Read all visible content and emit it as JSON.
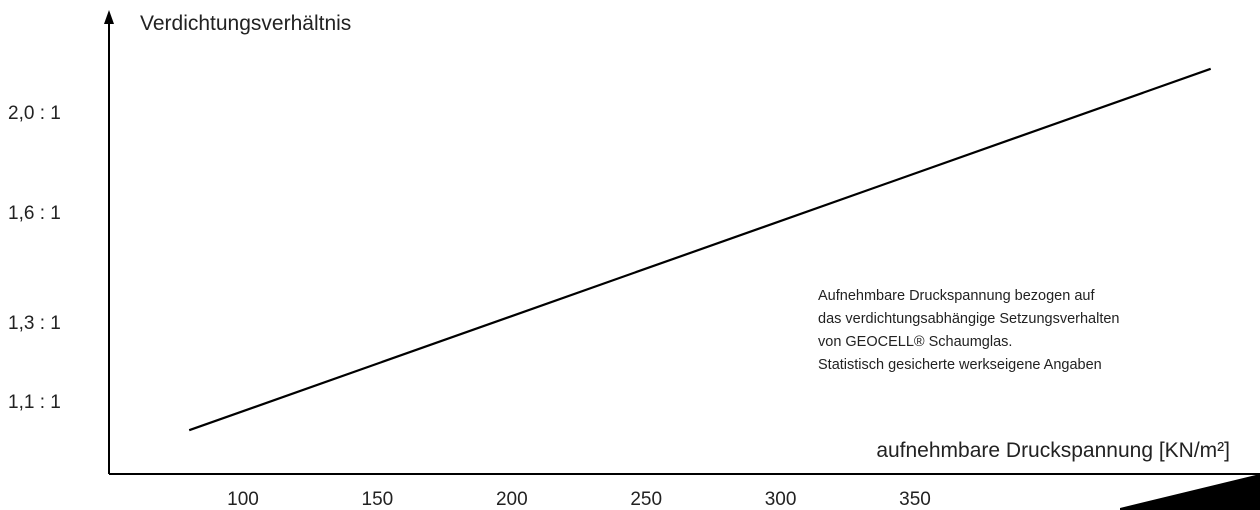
{
  "colors": {
    "line": "#000000",
    "axis": "#000000",
    "text": "#222222",
    "background": "#ffffff"
  },
  "annotation": {
    "lines": [
      "Aufnehmbare Druckspannung bezogen auf",
      "das verdichtungsabhängige Setzungsverhalten",
      "von GEOCELL® Schaumglas.",
      "Statistisch gesicherte werkseigene Angaben"
    ]
  },
  "chart_data": {
    "type": "line",
    "title": "",
    "xlabel": "aufnehmbare Druckspannung [KN/m²]",
    "ylabel": "Verdichtungsverhältnis",
    "x_ticks": [
      {
        "value": 100,
        "label": "100"
      },
      {
        "value": 150,
        "label": "150"
      },
      {
        "value": 200,
        "label": "200"
      },
      {
        "value": 250,
        "label": "250"
      },
      {
        "value": 300,
        "label": "300"
      },
      {
        "value": 350,
        "label": "350"
      }
    ],
    "y_ticks": [
      {
        "value": 1.1,
        "label": "1,1 : 1"
      },
      {
        "value": 1.3,
        "label": "1,3 : 1"
      },
      {
        "value": 1.6,
        "label": "1,6 : 1"
      },
      {
        "value": 2.0,
        "label": "2,0 : 1"
      }
    ],
    "series": [
      {
        "x": [
          80,
          460
        ],
        "y": [
          1.06,
          2.12
        ]
      }
    ],
    "grid": false,
    "legend": "none"
  }
}
